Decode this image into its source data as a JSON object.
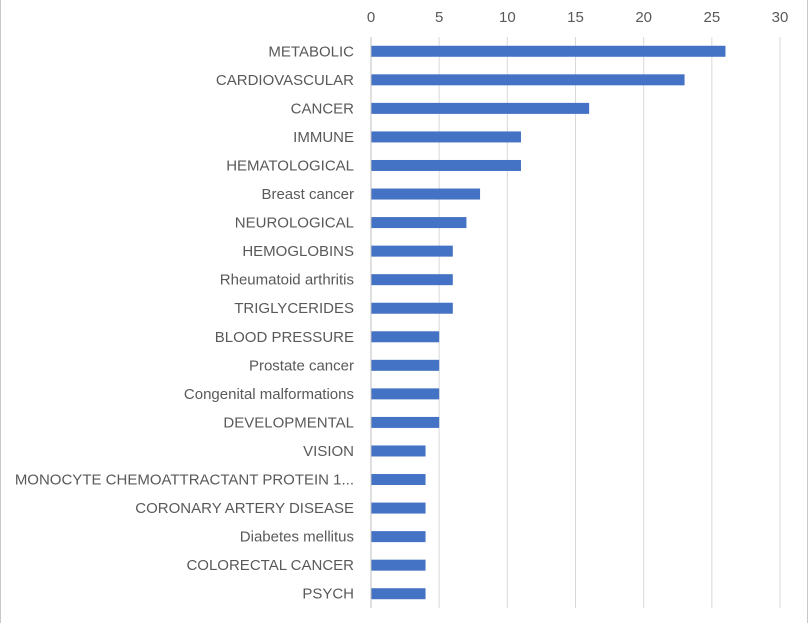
{
  "chart_data": {
    "type": "bar",
    "orientation": "horizontal",
    "categories": [
      "METABOLIC",
      "CARDIOVASCULAR",
      "CANCER",
      "IMMUNE",
      "HEMATOLOGICAL",
      "Breast cancer",
      "NEUROLOGICAL",
      "HEMOGLOBINS",
      "Rheumatoid arthritis",
      "TRIGLYCERIDES",
      "BLOOD PRESSURE",
      "Prostate cancer",
      "Congenital malformations",
      "DEVELOPMENTAL",
      "VISION",
      "MONOCYTE CHEMOATTRACTANT PROTEIN 1...",
      "CORONARY ARTERY DISEASE",
      "Diabetes mellitus",
      "COLORECTAL CANCER",
      "PSYCH"
    ],
    "values": [
      26,
      23,
      16,
      11,
      11,
      8,
      7,
      6,
      6,
      6,
      5,
      5,
      5,
      5,
      4,
      4,
      4,
      4,
      4,
      4
    ],
    "xlim": [
      0,
      30
    ],
    "xticks": [
      "0",
      "5",
      "10",
      "15",
      "20",
      "25",
      "30"
    ],
    "x_axis_position": "top",
    "grid": true,
    "bar_color": "#4472c4",
    "grid_color": "#d9d9d9",
    "title": "",
    "xlabel": "",
    "ylabel": ""
  }
}
